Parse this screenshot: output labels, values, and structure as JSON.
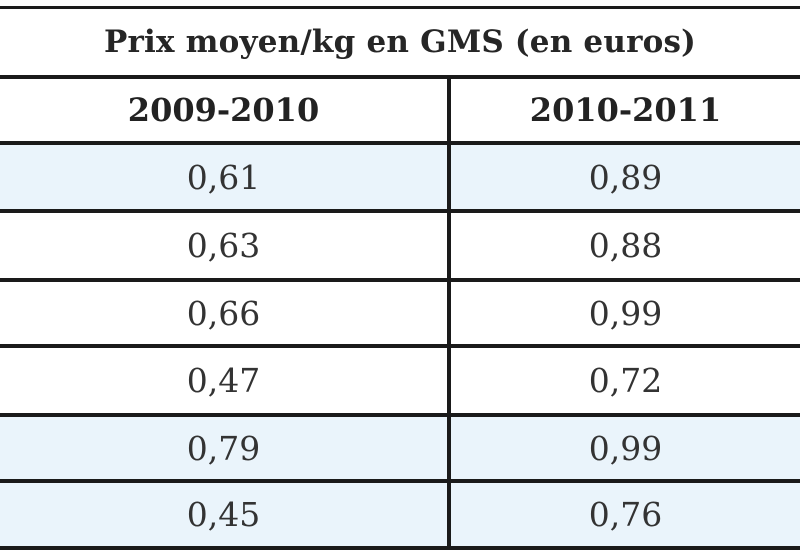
{
  "table": {
    "title": "Prix moyen/kg en GMS (en euros)",
    "columns": [
      "2009-2010",
      "2010-2011"
    ],
    "rows": [
      {
        "col1": "0,61",
        "col2": "0,89",
        "shaded": true
      },
      {
        "col1": "0,63",
        "col2": "0,88",
        "shaded": false
      },
      {
        "col1": "0,66",
        "col2": "0,99",
        "shaded": false
      },
      {
        "col1": "0,47",
        "col2": "0,72",
        "shaded": false
      },
      {
        "col1": "0,79",
        "col2": "0,99",
        "shaded": true
      },
      {
        "col1": "0,45",
        "col2": "0,76",
        "shaded": true
      }
    ],
    "colors": {
      "shaded_row": "#eaf4fb",
      "border": "#1a1a1a"
    }
  }
}
